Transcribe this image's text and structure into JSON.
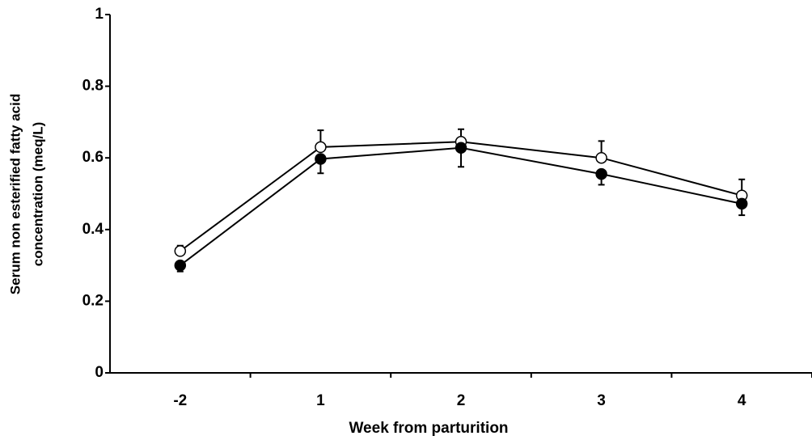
{
  "chart_data": {
    "type": "line",
    "xlabel": "Week from parturition",
    "ylabel": [
      "Serum non esterified fatty acid",
      "concentration (meq/L)"
    ],
    "categories": [
      "-2",
      "1",
      "2",
      "3",
      "4"
    ],
    "series": [
      {
        "color": "#000000",
        "fill": "#ffffff",
        "error_direction": "up",
        "values": [
          0.34,
          0.63,
          0.645,
          0.6,
          0.495
        ],
        "errors": [
          0.015,
          0.047,
          0.035,
          0.047,
          0.045
        ]
      },
      {
        "color": "#000000",
        "fill": "#000000",
        "error_direction": "down",
        "values": [
          0.3,
          0.597,
          0.628,
          0.555,
          0.472
        ],
        "errors": [
          0.017,
          0.04,
          0.053,
          0.03,
          0.032
        ]
      }
    ],
    "ylim": [
      0,
      1
    ],
    "yticks": [
      0,
      0.2,
      0.4,
      0.6,
      0.8,
      1
    ],
    "grid": false
  }
}
